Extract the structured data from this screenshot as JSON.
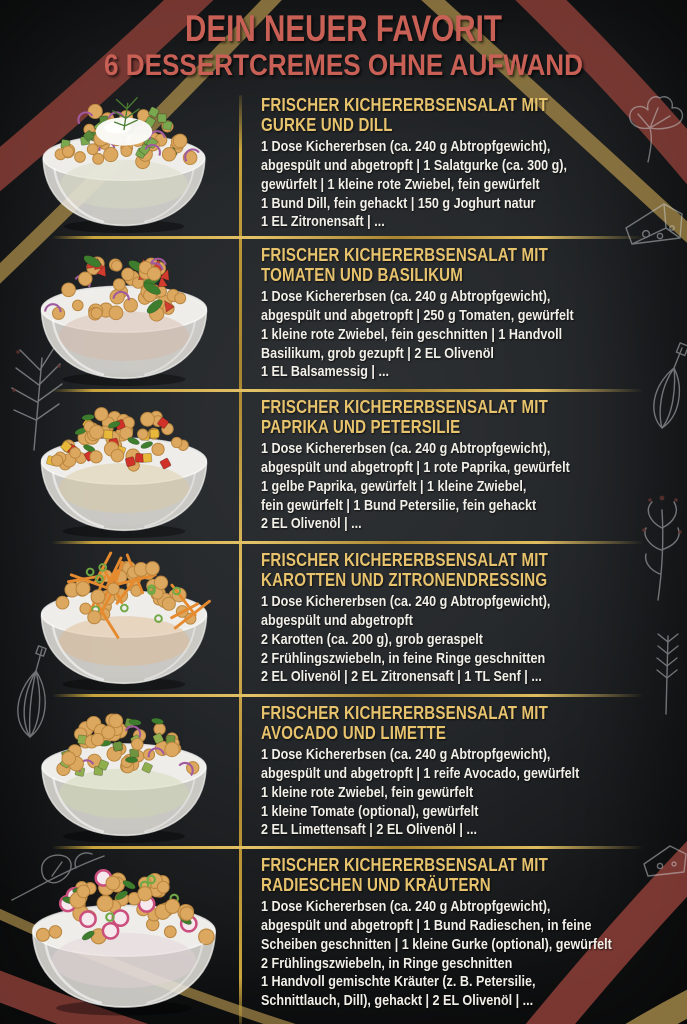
{
  "palette": {
    "title_red": "#c96056",
    "gold": "#c9a43c",
    "recipe_title": "#e8c36d",
    "body_text": "#f2efe8",
    "background": "#26292c",
    "chalk": "#ccd1d3",
    "berry_red": "#b5524b",
    "brush_red": "#8e4038",
    "brush_gold": "#a98c4a"
  },
  "header": {
    "title": "DEIN NEUER FAVORIT",
    "subtitle": "6 DESSERTCREMES OHNE AUFWAND"
  },
  "recipes": [
    {
      "title": "FRISCHER KICHERERBSENSALAT MIT\nGURKE UND DILL",
      "body": "1 Dose Kichererbsen (ca. 240 g Abtropfgewicht),\nabgespült und abgetropft | 1 Salatgurke (ca. 300 g),\ngewürfelt | 1 kleine rote Zwiebel, fein gewürfelt\n1 Bund Dill, fein gehackt | 150 g Joghurt natur\n1 EL Zitronensaft | ...",
      "bowl": {
        "label": "chickpea salad with cucumber, dill and yogurt",
        "chickpea": "#dca75f",
        "through": "#d7dcc4",
        "blob": "#fbfbf8",
        "sprig": "#4a7d33",
        "items": [
          {
            "shape": "cube",
            "color": "#79a84f",
            "count": 11
          },
          {
            "shape": "cube",
            "color": "#5a8a3c",
            "count": 5
          },
          {
            "shape": "arc",
            "color": "#a05a9e",
            "count": 6
          }
        ]
      }
    },
    {
      "title": "FRISCHER KICHERERBSENSALAT MIT\nTOMATEN UND BASILIKUM",
      "body": "1 Dose Kichererbsen (ca. 240 g Abtropfgewicht),\nabgespült und abgetropft | 250 g Tomaten, gewürfelt\n1 kleine rote Zwiebel, fein geschnitten | 1 Handvoll\nBasilikum, grob gezupft | 2 EL Olivenöl\n1 EL Balsamessig | ...",
      "bowl": {
        "label": "chickpea salad with tomatoes and basil",
        "chickpea": "#dca75f",
        "through": "#d8b9a8",
        "items": [
          {
            "shape": "wedge",
            "color": "#d23c2e",
            "count": 9
          },
          {
            "shape": "leaf",
            "color": "#3e7d2d",
            "count": 5,
            "size": 1.5
          },
          {
            "shape": "arc",
            "color": "#a05a9e",
            "count": 5
          }
        ]
      }
    },
    {
      "title": "FRISCHER KICHERERBSENSALAT MIT\nPAPRIKA UND PETERSILIE",
      "body": "1 Dose Kichererbsen (ca. 240 g Abtropfgewicht),\nabgespült und abgetropft | 1 rote Paprika, gewürfelt\n1 gelbe Paprika, gewürfelt | 1 kleine Zwiebel,\nfein gewürfelt | 1 Bund Petersilie, fein gehackt\n2 EL Olivenöl | ...",
      "bowl": {
        "label": "chickpea salad with red and yellow bell pepper and parsley",
        "chickpea": "#dca75f",
        "through": "#d9c9a0",
        "items": [
          {
            "shape": "cube",
            "color": "#d03229",
            "count": 8
          },
          {
            "shape": "cube",
            "color": "#e8b83a",
            "count": 8
          },
          {
            "shape": "leaf",
            "color": "#3e7d2d",
            "count": 6
          }
        ]
      }
    },
    {
      "title": "FRISCHER KICHERERBSENSALAT MIT\nKAROTTEN UND ZITRONENDRESSING",
      "body": "1 Dose Kichererbsen (ca. 240 g Abtropfgewicht),\nabgespült und abgetropft\n2 Karotten (ca. 200 g), grob geraspelt\n2 Frühlingszwiebeln, in feine Ringe geschnitten\n2 EL Olivenöl | 2 EL Zitronensaft | 1 TL Senf | ...",
      "bowl": {
        "label": "chickpea salad with shredded carrots and scallions",
        "chickpea": "#dca75f",
        "through": "#ddb98e",
        "items": [
          {
            "shape": "strip",
            "color": "#e58a2f",
            "count": 16
          },
          {
            "shape": "ring",
            "color": "#6fa844",
            "count": 9
          }
        ]
      }
    },
    {
      "title": "FRISCHER KICHERERBSENSALAT MIT\nAVOCADO UND LIMETTE",
      "body": "1 Dose Kichererbsen (ca. 240 g Abtropfgewicht),\nabgespült und abgetropft | 1 reife Avocado, gewürfelt\n1 kleine rote Zwiebel, fein gewürfelt\n1 kleine Tomate (optional), gewürfelt\n2 EL Limettensaft | 2 EL Olivenöl | ...",
      "bowl": {
        "label": "chickpea salad with avocado cubes, red onion and cilantro",
        "chickpea": "#dca75f",
        "through": "#cfd6b0",
        "items": [
          {
            "shape": "cube",
            "color": "#8fae4e",
            "count": 9
          },
          {
            "shape": "cube",
            "color": "#6e9440",
            "count": 5
          },
          {
            "shape": "arc",
            "color": "#a05a9e",
            "count": 4
          },
          {
            "shape": "leaf",
            "color": "#3e7d2d",
            "count": 4
          }
        ]
      }
    },
    {
      "title": "FRISCHER KICHERERBSENSALAT MIT\nRADIESCHEN UND KRÄUTERN",
      "body": "1 Dose Kichererbsen (ca. 240 g Abtropfgewicht),\nabgespült und abgetropft | 1 Bund Radieschen, in feine\nScheiben geschnitten | 1 kleine Gurke (optional), gewürfelt\n2 Frühlingszwiebeln, in Ringe geschnitten\n1 Handvoll gemischte Kräuter (z. B. Petersilie,\nSchnittlauch, Dill), gehackt | 2 EL Olivenöl | ...",
      "bowl": {
        "label": "chickpea salad with radish slices and mixed herbs",
        "chickpea": "#dca75f",
        "through": "#e3d3d6",
        "items": [
          {
            "shape": "slice",
            "color": "#cb4f7d",
            "count": 8
          },
          {
            "shape": "leaf",
            "color": "#3e7d2d",
            "count": 6
          },
          {
            "shape": "ring",
            "color": "#6fa844",
            "count": 4
          }
        ]
      }
    }
  ]
}
